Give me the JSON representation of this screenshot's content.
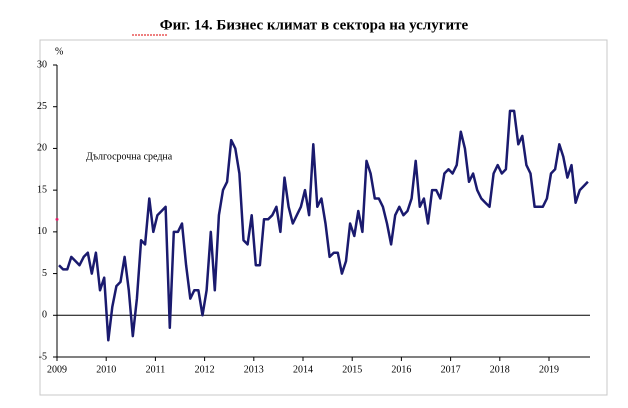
{
  "chart_data": {
    "type": "line",
    "title": "Фиг. 14. Бизнес климат в сектора на услугите",
    "y_unit": "%",
    "annotation": "Дългосрочна средна",
    "average_marker": 11.5,
    "categories": [
      "2009",
      null,
      null,
      null,
      null,
      null,
      null,
      null,
      null,
      null,
      null,
      null,
      "2010",
      null,
      null,
      null,
      null,
      null,
      null,
      null,
      null,
      null,
      null,
      null,
      "2011",
      null,
      null,
      null,
      null,
      null,
      null,
      null,
      null,
      null,
      null,
      null,
      "2012",
      null,
      null,
      null,
      null,
      null,
      null,
      null,
      null,
      null,
      null,
      null,
      "2013",
      null,
      null,
      null,
      null,
      null,
      null,
      null,
      null,
      null,
      null,
      null,
      "2014",
      null,
      null,
      null,
      null,
      null,
      null,
      null,
      null,
      null,
      null,
      null,
      "2015",
      null,
      null,
      null,
      null,
      null,
      null,
      null,
      null,
      null,
      null,
      null,
      "2016",
      null,
      null,
      null,
      null,
      null,
      null,
      null,
      null,
      null,
      null,
      null,
      "2017",
      null,
      null,
      null,
      null,
      null,
      null,
      null,
      null,
      null,
      null,
      null,
      "2018",
      null,
      null,
      null,
      null,
      null,
      null,
      null,
      null,
      null,
      null,
      null,
      "2019",
      null,
      null,
      null,
      null,
      null,
      null,
      null,
      null,
      null
    ],
    "series": [
      {
        "name": "Бизнес климат",
        "color": "#1a1a6e",
        "values": [
          6,
          5.5,
          5.5,
          7,
          6.5,
          6,
          7,
          7.5,
          5,
          7.5,
          3,
          4.5,
          -3,
          1,
          3.5,
          4,
          7,
          3,
          -2.5,
          2,
          9,
          8.5,
          14,
          10,
          12,
          12.5,
          13,
          -1.5,
          10,
          10,
          11,
          6,
          2,
          3,
          3,
          0,
          3,
          10,
          3,
          12,
          15,
          16,
          21,
          20,
          17,
          9,
          8.5,
          12,
          6,
          6,
          11.5,
          11.5,
          12,
          13,
          10,
          16.5,
          13,
          11,
          12,
          13,
          15,
          12,
          20.5,
          13,
          14,
          11,
          7,
          7.5,
          7.5,
          5,
          6.5,
          11,
          9.5,
          12.5,
          10,
          18.5,
          17,
          14,
          14,
          13,
          11,
          8.5,
          12,
          13,
          12,
          12.5,
          14,
          18.5,
          13,
          14,
          11,
          15,
          15,
          14,
          17,
          17.5,
          17,
          18,
          22,
          20,
          16,
          17,
          15,
          14,
          13.5,
          13,
          17,
          18,
          17,
          17.5,
          24.5,
          24.5,
          20.5,
          21.5,
          18,
          17,
          13,
          13,
          13,
          14,
          17,
          17.5,
          20.5,
          19,
          16.5,
          18,
          13.5,
          15,
          15.5,
          16
        ]
      }
    ],
    "ylim": [
      -5,
      30
    ],
    "yticks": [
      -5,
      0,
      5,
      10,
      15,
      20,
      25,
      30
    ]
  }
}
